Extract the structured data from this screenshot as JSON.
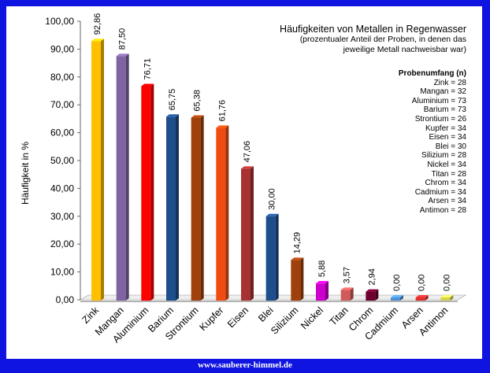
{
  "chart_data": {
    "type": "bar",
    "title": "Häufigkeiten von Metallen in Regenwasser",
    "subtitle": [
      "(prozentualer Anteil der Proben, in denen das",
      "jeweilige Metall nachweisbar war)"
    ],
    "ylabel": "Häufigkeit in %",
    "xlabel": "",
    "ylim": [
      0,
      100
    ],
    "yticks": [
      "0,00",
      "10,00",
      "20,00",
      "30,00",
      "40,00",
      "50,00",
      "60,00",
      "70,00",
      "80,00",
      "90,00",
      "100,00"
    ],
    "categories": [
      "Zink",
      "Mangan",
      "Aluminium",
      "Barium",
      "Strontium",
      "Kupfer",
      "Eisen",
      "Blei",
      "Silizium",
      "Nickel",
      "Titan",
      "Chrom",
      "Cadmium",
      "Arsen",
      "Antimon"
    ],
    "values": [
      92.86,
      87.5,
      76.71,
      65.75,
      65.38,
      61.76,
      47.06,
      30.0,
      14.29,
      5.88,
      3.57,
      2.94,
      0.0,
      0.0,
      0.0
    ],
    "data_labels": [
      "92,86",
      "87,50",
      "76,71",
      "65,75",
      "65,38",
      "61,76",
      "47,06",
      "30,00",
      "14,29",
      "5,88",
      "3,57",
      "2,94",
      "0,00",
      "0,00",
      "0,00"
    ],
    "colors": [
      "#ffc000",
      "#8064a2",
      "#ff0000",
      "#1f4e8c",
      "#a0400c",
      "#f04b10",
      "#a83232",
      "#1f4e8c",
      "#a0400c",
      "#cc00cc",
      "#d05a5a",
      "#6e0030",
      "#4f93d4",
      "#e03030",
      "#d4d44a"
    ],
    "grid": false,
    "sample_size": {
      "heading": "Probenumfang (n)",
      "entries": [
        "Zink = 28",
        "Mangan = 32",
        "Aluminium = 73",
        "Barium = 73",
        "Strontium = 26",
        "Kupfer = 34",
        "Eisen = 34",
        "Blei = 30",
        "Silizium = 28",
        "Nickel = 34",
        "Titan = 28",
        "Chrom = 34",
        "Cadmium = 34",
        "Arsen = 34",
        "Antimon = 28"
      ]
    }
  },
  "footer": "www.sauberer-himmel.de"
}
